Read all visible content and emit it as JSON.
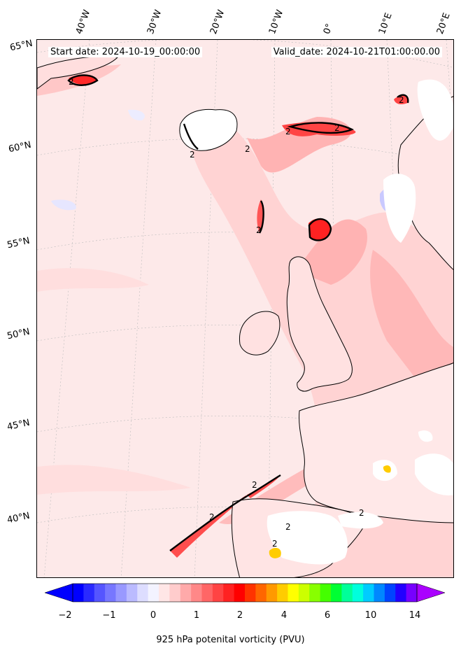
{
  "header": {
    "start_date": "Start date: 2024-10-19_00:00:00",
    "valid_date": "Valid_date: 2024-10-21T01:00:00.00"
  },
  "map": {
    "longitude_labels": [
      "40°W",
      "30°W",
      "20°W",
      "10°W",
      "0°",
      "10°E",
      "20°E"
    ],
    "latitude_labels": [
      "65°N",
      "60°N",
      "55°N",
      "50°N",
      "45°N",
      "40°N"
    ],
    "contour_label": "2"
  },
  "colorbar": {
    "ticks": [
      "−2",
      "−1",
      "0",
      "1",
      "2",
      "4",
      "6",
      "10",
      "14"
    ],
    "label": "925 hPa potenital vorticity (PVU)",
    "colors": [
      "#0000ff",
      "#2a2aff",
      "#5555ff",
      "#7777ff",
      "#9999ff",
      "#bbbbff",
      "#ddddff",
      "#f3f3ff",
      "#ffe6e6",
      "#ffcccc",
      "#ffaaaa",
      "#ff8888",
      "#ff6666",
      "#ff4444",
      "#ff2222",
      "#ff0000",
      "#ff3300",
      "#ff6600",
      "#ff9900",
      "#ffcc00",
      "#ffff00",
      "#ccff00",
      "#88ff00",
      "#44ff00",
      "#00ff33",
      "#00ff99",
      "#00ffdd",
      "#00ccff",
      "#0088ff",
      "#0044ff",
      "#2200ff",
      "#7700ff"
    ],
    "extend_low_color": "#0000ff",
    "extend_high_color": "#aa00ff"
  }
}
